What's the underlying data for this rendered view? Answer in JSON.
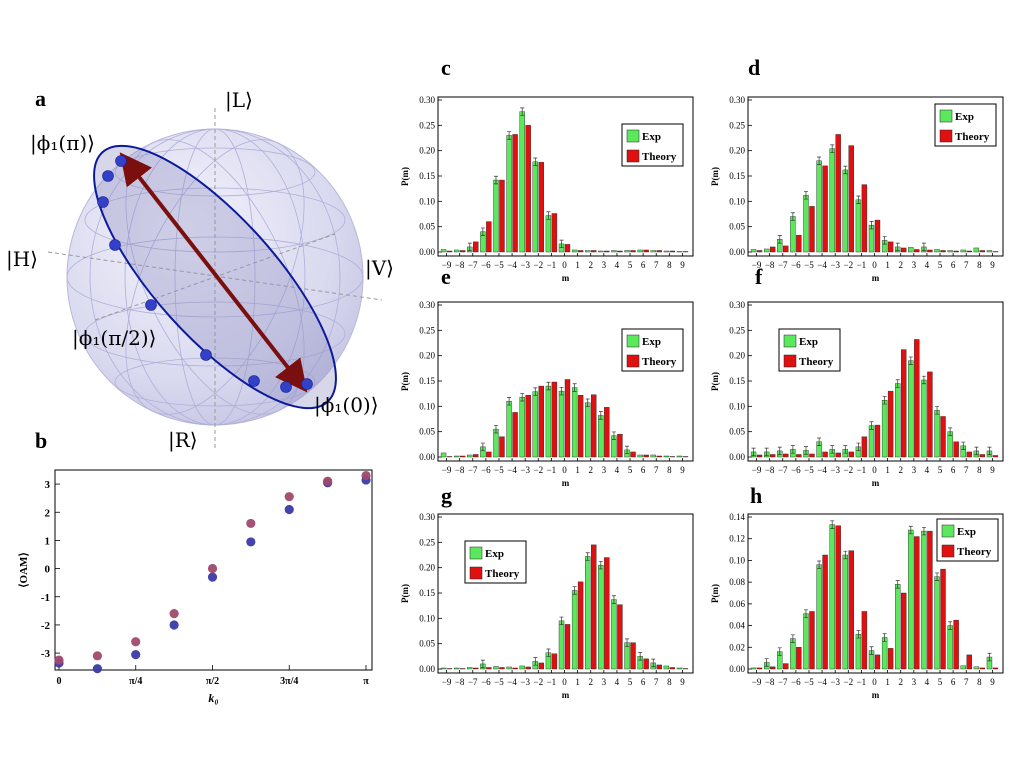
{
  "panel_labels": [
    "a",
    "b",
    "c",
    "d",
    "e",
    "f",
    "g",
    "h"
  ],
  "sphere": {
    "labels": [
      "|L⟩",
      "|R⟩",
      "|H⟩",
      "|V⟩",
      "|ϕ₁(π)⟩",
      "|ϕ₁(π/2)⟩",
      "|ϕ₁(0)⟩"
    ],
    "colors": {
      "circle": "#0a1a9a",
      "arrow": "#7a0f0f",
      "dots": "#3340c8"
    }
  },
  "chart_data": [
    {
      "panel": "b",
      "type": "scatter",
      "title": "",
      "xlabel": "k₀",
      "ylabel": "⟨OAM⟩",
      "xticks": [
        "0",
        "π/4",
        "π/2",
        "3π/4",
        "π"
      ],
      "yticks": [
        "-3",
        "-2",
        "-1",
        "0",
        "1",
        "2",
        "3"
      ],
      "xlim": [
        0,
        3.1416
      ],
      "ylim": [
        -3.6,
        3.5
      ],
      "x": [
        0,
        0.393,
        0.785,
        1.178,
        1.571,
        1.963,
        2.356,
        2.749,
        3.142
      ],
      "series": [
        {
          "name": "blue",
          "color": "#3a3aa8",
          "values": [
            -3.3,
            -3.5,
            -3.0,
            -1.95,
            -0.25,
            1.0,
            2.15,
            3.1,
            3.2
          ]
        },
        {
          "name": "purple",
          "color": "#a04a6e",
          "values": [
            -3.3,
            -3.15,
            -2.65,
            -1.65,
            -0.05,
            1.55,
            2.5,
            3.05,
            3.25
          ]
        }
      ]
    },
    {
      "panel": "c",
      "type": "bar",
      "xlabel": "m",
      "ylabel": "P(m)",
      "ylim": [
        0,
        0.3
      ],
      "categories": [
        "−9",
        "−8",
        "−7",
        "−6",
        "−5",
        "−4",
        "−3",
        "−2",
        "−1",
        "0",
        "1",
        "2",
        "3",
        "4",
        "5",
        "6",
        "7",
        "8",
        "9"
      ],
      "yticks": [
        "0.00",
        "0.05",
        "0.10",
        "0.15",
        "0.20",
        "0.25",
        "0.30"
      ],
      "legend": [
        "Exp",
        "Theory"
      ],
      "legend_position": "top-right",
      "series": [
        {
          "name": "Exp",
          "color": "#5ce85c",
          "values": [
            0.005,
            0.004,
            0.01,
            0.04,
            0.142,
            0.23,
            0.277,
            0.178,
            0.072,
            0.016,
            0.004,
            0.003,
            0.002,
            0.003,
            0.003,
            0.004,
            0.003,
            0.002,
            0.001
          ]
        },
        {
          "name": "Theory",
          "color": "#e01010",
          "values": [
            0.002,
            0.003,
            0.02,
            0.06,
            0.142,
            0.232,
            0.25,
            0.177,
            0.076,
            0.015,
            0.003,
            0.003,
            0.002,
            0.002,
            0.003,
            0.004,
            0.003,
            0.002,
            0.001
          ]
        }
      ]
    },
    {
      "panel": "d",
      "type": "bar",
      "xlabel": "m",
      "ylabel": "P(m)",
      "ylim": [
        0,
        0.3
      ],
      "categories": [
        "−9",
        "−8",
        "−7",
        "−6",
        "−5",
        "−4",
        "−3",
        "−2",
        "−1",
        "0",
        "1",
        "2",
        "3",
        "4",
        "5",
        "6",
        "7",
        "8",
        "9"
      ],
      "yticks": [
        "0.00",
        "0.05",
        "0.10",
        "0.15",
        "0.20",
        "0.25",
        "0.30"
      ],
      "legend": [
        "Exp",
        "Theory"
      ],
      "legend_position": "top-right",
      "series": [
        {
          "name": "Exp",
          "color": "#5ce85c",
          "values": [
            0.005,
            0.006,
            0.025,
            0.07,
            0.112,
            0.18,
            0.204,
            0.162,
            0.103,
            0.053,
            0.023,
            0.01,
            0.009,
            0.01,
            0.005,
            0.003,
            0.004,
            0.008,
            0.003
          ]
        },
        {
          "name": "Theory",
          "color": "#e01010",
          "values": [
            0.003,
            0.01,
            0.012,
            0.033,
            0.09,
            0.17,
            0.232,
            0.21,
            0.133,
            0.063,
            0.02,
            0.008,
            0.005,
            0.004,
            0.003,
            0.002,
            0.002,
            0.003,
            0.001
          ]
        }
      ]
    },
    {
      "panel": "e",
      "type": "bar",
      "xlabel": "m",
      "ylabel": "P(m)",
      "ylim": [
        0,
        0.3
      ],
      "categories": [
        "−9",
        "−8",
        "−7",
        "−6",
        "−5",
        "−4",
        "−3",
        "−2",
        "−1",
        "0",
        "1",
        "2",
        "3",
        "4",
        "5",
        "6",
        "7",
        "8",
        "9"
      ],
      "yticks": [
        "0.00",
        "0.05",
        "0.10",
        "0.15",
        "0.20",
        "0.25",
        "0.30"
      ],
      "legend": [
        "Exp",
        "Theory"
      ],
      "legend_position": "top-right",
      "series": [
        {
          "name": "Exp",
          "color": "#5ce85c",
          "values": [
            0.008,
            0.002,
            0.004,
            0.02,
            0.055,
            0.11,
            0.118,
            0.129,
            0.14,
            0.13,
            0.137,
            0.107,
            0.082,
            0.042,
            0.014,
            0.004,
            0.004,
            0.002,
            0.002
          ]
        },
        {
          "name": "Theory",
          "color": "#e01010",
          "values": [
            0.001,
            0.002,
            0.005,
            0.01,
            0.04,
            0.088,
            0.122,
            0.14,
            0.148,
            0.153,
            0.122,
            0.123,
            0.098,
            0.045,
            0.01,
            0.004,
            0.002,
            0.001,
            0.001
          ]
        }
      ]
    },
    {
      "panel": "f",
      "type": "bar",
      "xlabel": "m",
      "ylabel": "P(m)",
      "ylim": [
        0,
        0.3
      ],
      "categories": [
        "−9",
        "−8",
        "−7",
        "−6",
        "−5",
        "−4",
        "−3",
        "−2",
        "−1",
        "0",
        "1",
        "2",
        "3",
        "4",
        "5",
        "6",
        "7",
        "8",
        "9"
      ],
      "yticks": [
        "0.00",
        "0.05",
        "0.10",
        "0.15",
        "0.20",
        "0.25",
        "0.30"
      ],
      "legend": [
        "Exp",
        "Theory"
      ],
      "legend_position": "top-left",
      "series": [
        {
          "name": "Exp",
          "color": "#5ce85c",
          "values": [
            0.01,
            0.01,
            0.012,
            0.015,
            0.013,
            0.03,
            0.015,
            0.015,
            0.02,
            0.062,
            0.112,
            0.145,
            0.19,
            0.152,
            0.092,
            0.05,
            0.022,
            0.012,
            0.012
          ]
        },
        {
          "name": "Theory",
          "color": "#e01010",
          "values": [
            0.004,
            0.005,
            0.006,
            0.005,
            0.006,
            0.01,
            0.008,
            0.01,
            0.04,
            0.063,
            0.13,
            0.212,
            0.232,
            0.168,
            0.08,
            0.03,
            0.01,
            0.005,
            0.003
          ]
        }
      ]
    },
    {
      "panel": "g",
      "type": "bar",
      "xlabel": "m",
      "ylabel": "P(m)",
      "ylim": [
        0,
        0.3
      ],
      "categories": [
        "−9",
        "−8",
        "−7",
        "−6",
        "−5",
        "−4",
        "−3",
        "−2",
        "−1",
        "0",
        "1",
        "2",
        "3",
        "4",
        "5",
        "6",
        "7",
        "8",
        "9"
      ],
      "yticks": [
        "0.00",
        "0.05",
        "0.10",
        "0.15",
        "0.20",
        "0.25",
        "0.30"
      ],
      "legend": [
        "Exp",
        "Theory"
      ],
      "legend_position": "left",
      "series": [
        {
          "name": "Exp",
          "color": "#5ce85c",
          "values": [
            0.002,
            0.002,
            0.003,
            0.01,
            0.005,
            0.004,
            0.006,
            0.015,
            0.032,
            0.095,
            0.155,
            0.222,
            0.205,
            0.137,
            0.052,
            0.025,
            0.012,
            0.006,
            0.002
          ]
        },
        {
          "name": "Theory",
          "color": "#e01010",
          "values": [
            0.001,
            0.001,
            0.002,
            0.003,
            0.003,
            0.002,
            0.004,
            0.012,
            0.03,
            0.088,
            0.172,
            0.245,
            0.22,
            0.127,
            0.052,
            0.02,
            0.008,
            0.003,
            0.001
          ]
        }
      ]
    },
    {
      "panel": "h",
      "type": "bar",
      "xlabel": "m",
      "ylabel": "P(m)",
      "ylim": [
        0,
        0.14
      ],
      "categories": [
        "−9",
        "−8",
        "−7",
        "−6",
        "−5",
        "−4",
        "−3",
        "−2",
        "−1",
        "0",
        "1",
        "2",
        "3",
        "4",
        "5",
        "6",
        "7",
        "8",
        "9"
      ],
      "yticks": [
        "0.00",
        "0.02",
        "0.04",
        "0.06",
        "0.08",
        "0.10",
        "0.12",
        "0.14"
      ],
      "legend": [
        "Exp",
        "Theory"
      ],
      "legend_position": "top-right",
      "series": [
        {
          "name": "Exp",
          "color": "#5ce85c",
          "values": [
            0.001,
            0.006,
            0.016,
            0.028,
            0.051,
            0.096,
            0.133,
            0.105,
            0.032,
            0.017,
            0.029,
            0.078,
            0.128,
            0.127,
            0.085,
            0.04,
            0.003,
            0.002,
            0.011
          ]
        },
        {
          "name": "Theory",
          "color": "#e01010",
          "values": [
            0.001,
            0.002,
            0.005,
            0.02,
            0.053,
            0.105,
            0.132,
            0.109,
            0.053,
            0.013,
            0.019,
            0.07,
            0.122,
            0.127,
            0.092,
            0.045,
            0.013,
            0.001,
            0.001
          ]
        }
      ]
    }
  ]
}
